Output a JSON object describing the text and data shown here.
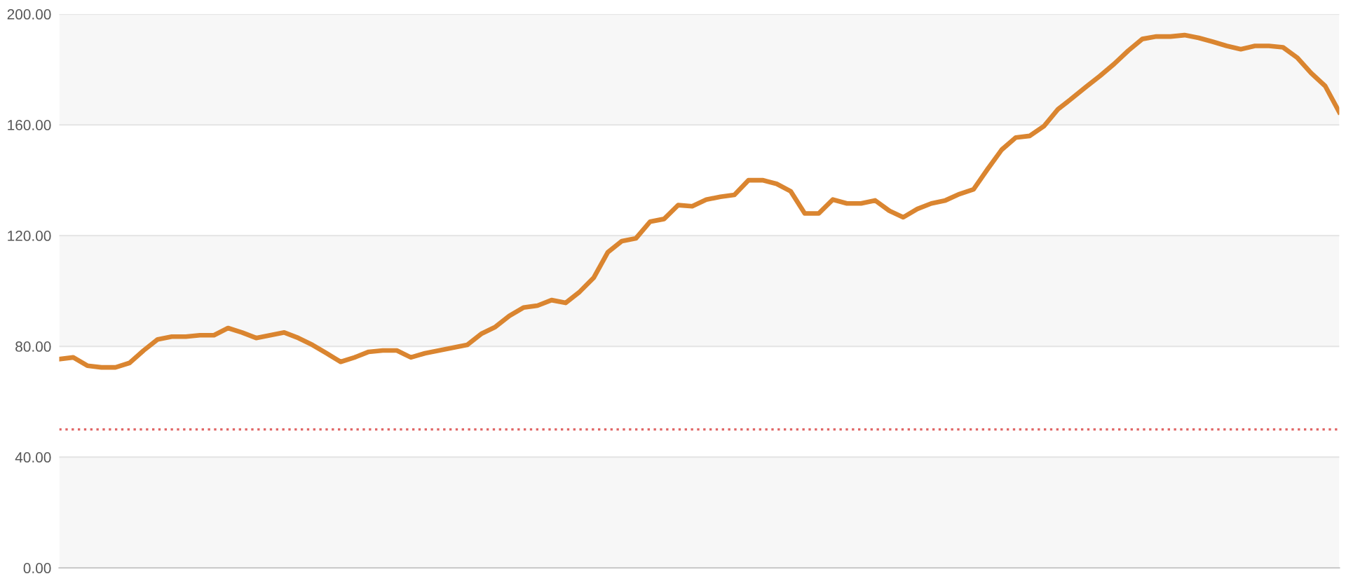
{
  "chart_data": {
    "type": "line",
    "categories": [
      null,
      null,
      null,
      null,
      null,
      null,
      null,
      null,
      null,
      null,
      null,
      null,
      null,
      null,
      null,
      null,
      null,
      null,
      null,
      null,
      null,
      null,
      null,
      null,
      null,
      null,
      null,
      null,
      null,
      null,
      null,
      null,
      null,
      null,
      null,
      null,
      null,
      null,
      null,
      null,
      null,
      null,
      null,
      null,
      null,
      null,
      null,
      null,
      null,
      null,
      null,
      null,
      null,
      null,
      null,
      null,
      null,
      null,
      null,
      null,
      null,
      null,
      null,
      null,
      null,
      null,
      null,
      null,
      null,
      null,
      null,
      null,
      null,
      null,
      null,
      null,
      null,
      null,
      null,
      null,
      null,
      null,
      null,
      null,
      null,
      null,
      null,
      null,
      null,
      null,
      null,
      null
    ],
    "series": [
      {
        "color": "#da8530",
        "values": [
          75.4,
          76,
          73,
          72.4,
          72.4,
          74,
          78.5,
          82.5,
          83.5,
          83.5,
          84,
          84,
          86.6,
          85,
          83,
          84,
          85,
          83,
          80.5,
          77.5,
          74.4,
          76,
          78,
          78.5,
          78.5,
          76,
          77.5,
          78.5,
          79.5,
          80.5,
          84.5,
          87,
          91,
          94,
          94.7,
          96.7,
          95.7,
          99.7,
          104.8,
          114,
          118,
          119,
          125,
          126,
          131,
          130.6,
          133,
          134,
          134.7,
          140,
          140,
          138.7,
          136,
          128,
          128,
          133,
          131.6,
          131.6,
          132.7,
          129,
          126.6,
          129.6,
          131.6,
          132.7,
          135,
          136.7,
          144,
          151,
          155.4,
          156,
          159.5,
          165.6,
          169.6,
          173.7,
          177.7,
          182,
          186.8,
          191,
          191.9,
          191.9,
          192.4,
          191.4,
          190,
          188.5,
          187.3,
          188.5,
          188.5,
          188,
          184.3,
          178.7,
          174,
          164.6
        ]
      }
    ],
    "ylim": [
      0,
      200
    ],
    "yticks": [
      {
        "value": 0,
        "label": "0.00"
      },
      {
        "value": 40,
        "label": "40.00"
      },
      {
        "value": 80,
        "label": "80.00"
      },
      {
        "value": 120,
        "label": "120.00"
      },
      {
        "value": 160,
        "label": "160.00"
      },
      {
        "value": 200,
        "label": "200.00"
      }
    ],
    "tick_labels": "y",
    "grid": "y",
    "ref_lines": [
      {
        "axis": "y",
        "value": 50,
        "color": "#e06666",
        "line_style": "dotted"
      }
    ]
  }
}
